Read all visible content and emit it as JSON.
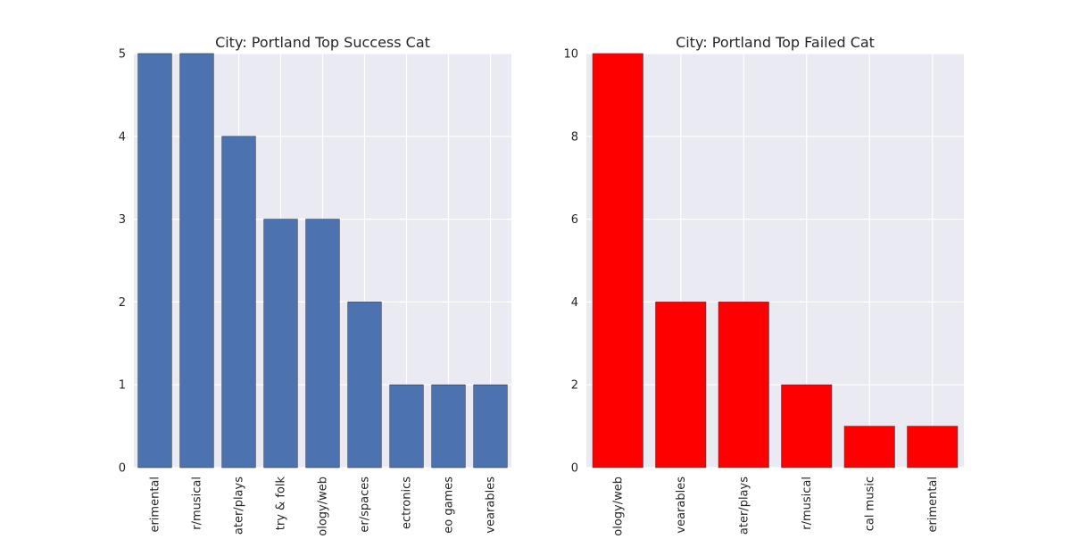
{
  "chart_data": [
    {
      "type": "bar",
      "title": "City: Portland Top Success Cat",
      "categories": [
        "experimental",
        "theater/musical",
        "theater/plays",
        "country & folk",
        "technology/web",
        "theater/spaces",
        "electronics",
        "video games",
        "wearables"
      ],
      "category_labels": [
        "erimental",
        "r/musical",
        "ater/plays",
        "try & folk",
        "ology/web",
        "er/spaces",
        "ectronics",
        "eo games",
        "vearables"
      ],
      "values": [
        5,
        5,
        4,
        3,
        3,
        2,
        1,
        1,
        1
      ],
      "xlabel": "",
      "ylabel": "",
      "ylim": [
        0,
        5
      ],
      "yticks": [
        "0",
        "1",
        "2",
        "3",
        "4",
        "5"
      ],
      "color": "#4c72b0",
      "grid": true
    },
    {
      "type": "bar",
      "title": "City: Portland Top Failed Cat",
      "categories": [
        "technology/web",
        "wearables",
        "theater/plays",
        "theater/musical",
        "classical music",
        "experimental"
      ],
      "category_labels": [
        "ology/web",
        "vearables",
        "ater/plays",
        "r/musical",
        "cal music",
        "erimental"
      ],
      "values": [
        10,
        4,
        4,
        2,
        1,
        1
      ],
      "xlabel": "",
      "ylabel": "",
      "ylim": [
        0,
        10
      ],
      "yticks": [
        "0",
        "2",
        "4",
        "6",
        "8",
        "10"
      ],
      "color": "#ff0000",
      "grid": true
    }
  ]
}
